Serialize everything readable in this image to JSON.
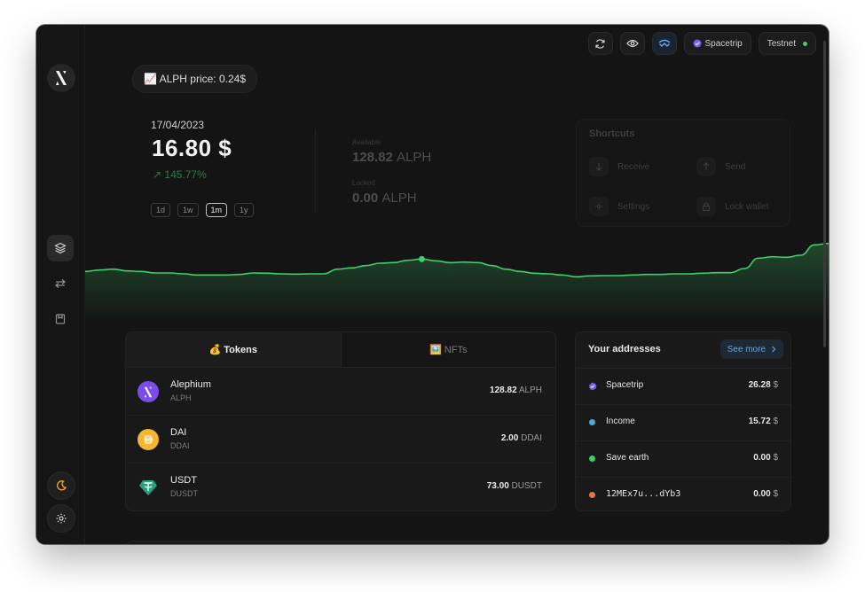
{
  "colors": {
    "accent_green": "#3ecf6b",
    "window_bg": "#141414",
    "link_blue": "#6aa0e6"
  },
  "window": {
    "traffic_lights": [
      "#ff5f57",
      "#febc2e",
      "#28c840"
    ]
  },
  "sidebar": {
    "logo_icon": "alephium-x-logo",
    "nav": [
      {
        "icon": "layers-icon",
        "active": true
      },
      {
        "icon": "transfer-arrows-icon",
        "active": false
      },
      {
        "icon": "address-book-icon",
        "active": false
      }
    ],
    "bottom": [
      {
        "icon": "moon-icon"
      },
      {
        "icon": "gear-icon"
      }
    ]
  },
  "topbar": {
    "refresh_icon": "refresh-icon",
    "discreet_icon": "eye-icon",
    "walletconnect_icon": "walletconnect-icon",
    "account_label": "Spacetrip",
    "network_label": "Testnet",
    "network_status": "online"
  },
  "price": {
    "text": "📈 ALPH price: 0.24$"
  },
  "summary": {
    "date": "17/04/2023",
    "balance": "16.80 $",
    "change": "↗ 145.77%",
    "periods": [
      "1d",
      "1w",
      "1m",
      "1y"
    ],
    "selected_period": "1m",
    "available_label": "Available",
    "available_value": "128.82",
    "available_unit": "ALPH",
    "locked_label": "Locked",
    "locked_value": "0.00",
    "locked_unit": "ALPH"
  },
  "shortcuts": {
    "title": "Shortcuts",
    "items": [
      {
        "label": "Receive",
        "icon": "arrow-down-icon"
      },
      {
        "label": "Send",
        "icon": "arrow-up-icon"
      },
      {
        "label": "Settings",
        "icon": "gear-icon"
      },
      {
        "label": "Lock wallet",
        "icon": "lock-icon"
      }
    ]
  },
  "chart_data": {
    "type": "area",
    "title": "",
    "xlabel": "",
    "ylabel": "",
    "values": [
      0.5,
      0.55,
      0.58,
      0.52,
      0.5,
      0.45,
      0.45,
      0.42,
      0.38,
      0.38,
      0.38,
      0.4,
      0.45,
      0.44,
      0.42,
      0.41,
      0.42,
      0.42,
      0.58,
      0.62,
      0.7,
      0.78,
      0.8,
      0.88,
      0.92,
      0.86,
      0.8,
      0.82,
      0.8,
      0.7,
      0.58,
      0.5,
      0.44,
      0.42,
      0.38,
      0.32,
      0.35,
      0.36,
      0.36,
      0.38,
      0.4,
      0.4,
      0.42,
      0.42,
      0.44,
      0.46,
      0.46,
      0.6,
      0.95,
      1.0,
      0.98,
      1.05,
      1.4,
      1.45
    ],
    "highlight_index": 24,
    "grid": false,
    "legend": "none"
  },
  "tokens_card": {
    "tabs": [
      {
        "label": "💰 Tokens",
        "active": true
      },
      {
        "label": "🖼️ NFTs",
        "active": false
      }
    ],
    "tokens": [
      {
        "name": "Alephium",
        "symbol": "ALPH",
        "amount": "128.82",
        "unit": "ALPH",
        "icon": "alephium-icon",
        "color": "#7a4ce8"
      },
      {
        "name": "DAI",
        "symbol": "DDAI",
        "amount": "2.00",
        "unit": "DDAI",
        "icon": "dai-icon",
        "color": "#f4b731"
      },
      {
        "name": "USDT",
        "symbol": "DUSDT",
        "amount": "73.00",
        "unit": "DUSDT",
        "icon": "tether-icon",
        "color": "#26a17b"
      }
    ]
  },
  "addresses_card": {
    "title": "Your addresses",
    "see_more": "See more",
    "addresses": [
      {
        "name": "Spacetrip",
        "value": "26.28",
        "unit": "$",
        "color": "#7b5cf0",
        "verified": true,
        "mono": false
      },
      {
        "name": "Income",
        "value": "15.72",
        "unit": "$",
        "color": "#4aa9d8",
        "verified": false,
        "mono": false
      },
      {
        "name": "Save earth",
        "value": "0.00",
        "unit": "$",
        "color": "#3ecf6b",
        "verified": false,
        "mono": false
      },
      {
        "name": "12MEx7u...dYb3",
        "value": "0.00",
        "unit": "$",
        "color": "#e07a3c",
        "verified": false,
        "mono": true
      }
    ]
  }
}
